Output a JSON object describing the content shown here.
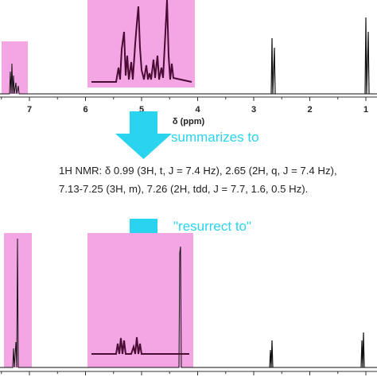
{
  "top_spectrum": {
    "axis_ticks": [
      "7",
      "6",
      "5",
      "4",
      "3",
      "2",
      "1"
    ],
    "axis_label": "δ (ppm)"
  },
  "arrows": [
    {
      "label": "summarizes to"
    },
    {
      "label": "\"resurrect to\""
    }
  ],
  "summary": {
    "text": "1H NMR: δ 0.99 (3H, t, J = 7.4 Hz), 2.65 (2H, q, J = 7.4 Hz), 7.13-7.25 (3H, m), 7.26 (2H, tdd, J = 7.7, 1.6, 0.5 Hz)."
  }
}
